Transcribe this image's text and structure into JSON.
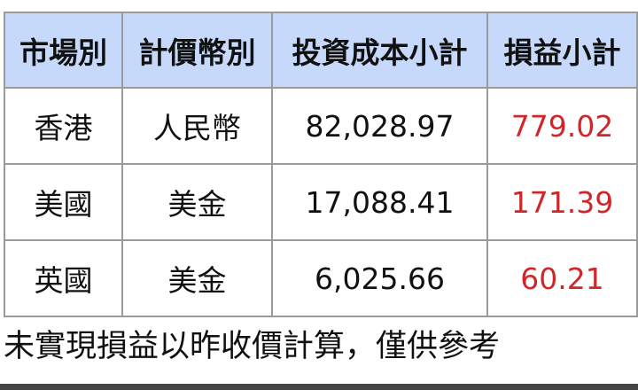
{
  "table": {
    "headers": [
      "市場別",
      "計價幣別",
      "投資成本小計",
      "損益小計"
    ],
    "rows": [
      {
        "market": "香港",
        "currency": "人民幣",
        "cost": "82,028.97",
        "pl": "779.02"
      },
      {
        "market": "美國",
        "currency": "美金",
        "cost": "17,088.41",
        "pl": "171.39"
      },
      {
        "market": "英國",
        "currency": "美金",
        "cost": "6,025.66",
        "pl": "60.21"
      }
    ]
  },
  "note": "未實現損益以昨收價計算，僅供參考",
  "colors": {
    "header_bg": "#c6d9fb",
    "profit": "#d0262a",
    "border": "#9a9a9a"
  }
}
